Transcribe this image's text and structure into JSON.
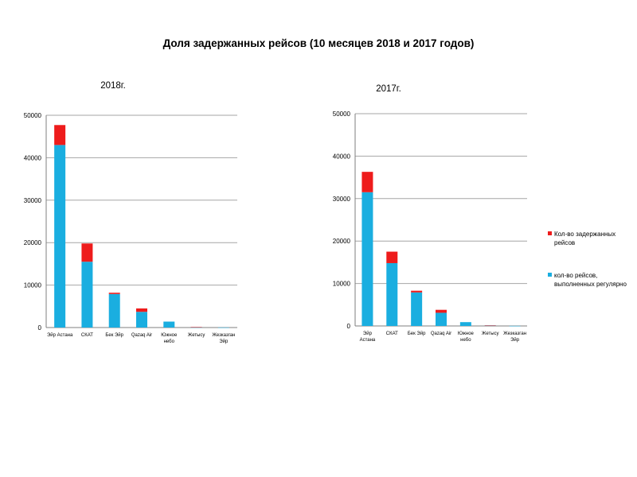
{
  "page_title": "Доля задержанных рейсов (10 месяцев 2018 и 2017 годов)",
  "colors": {
    "regular": "#1aaee0",
    "delayed": "#ee1c1c",
    "grid": "#a6a6a6",
    "axis": "#7f7f7f"
  },
  "legend": {
    "items": [
      {
        "label": "Кол-во задержанных рейсов",
        "color": "#ee1c1c"
      },
      {
        "label": "кол-во рейсов, выполненных регулярно",
        "color": "#1aaee0"
      }
    ],
    "position": "right"
  },
  "chart_data": [
    {
      "type": "bar",
      "stacked": true,
      "title": "2018г.",
      "categories": [
        [
          "Эйр Астана"
        ],
        [
          "СКАТ"
        ],
        [
          "Бек Эйр"
        ],
        [
          "Qazaq Air"
        ],
        [
          "Южное",
          "небо"
        ],
        [
          "Жетысу"
        ],
        [
          "Жезказган",
          "Эйр"
        ]
      ],
      "ylim": [
        0,
        50000
      ],
      "yticks": [
        0,
        10000,
        20000,
        30000,
        40000,
        50000
      ],
      "grid": true,
      "series": [
        {
          "name": "кол-во рейсов, выполненных регулярно",
          "values": [
            43000,
            15500,
            7900,
            3700,
            1400,
            50,
            20
          ]
        },
        {
          "name": "Кол-во задержанных рейсов",
          "values": [
            4700,
            4300,
            300,
            800,
            0,
            80,
            0
          ]
        }
      ]
    },
    {
      "type": "bar",
      "stacked": true,
      "title": "2017г.",
      "categories": [
        [
          "Эйр",
          "Астана"
        ],
        [
          "СКАТ"
        ],
        [
          "Бек Эйр"
        ],
        [
          "Qazaq Air"
        ],
        [
          "Южное",
          "небо"
        ],
        [
          "Жетысу"
        ],
        [
          "Жезказган",
          "Эйр"
        ]
      ],
      "ylim": [
        0,
        50000
      ],
      "yticks": [
        0,
        10000,
        20000,
        30000,
        40000,
        50000
      ],
      "grid": true,
      "series": [
        {
          "name": "кол-во рейсов, выполненных регулярно",
          "values": [
            31500,
            14800,
            7900,
            3100,
            900,
            100,
            20
          ]
        },
        {
          "name": "Кол-во задержанных рейсов",
          "values": [
            4800,
            2700,
            400,
            700,
            0,
            50,
            0
          ]
        }
      ]
    }
  ]
}
